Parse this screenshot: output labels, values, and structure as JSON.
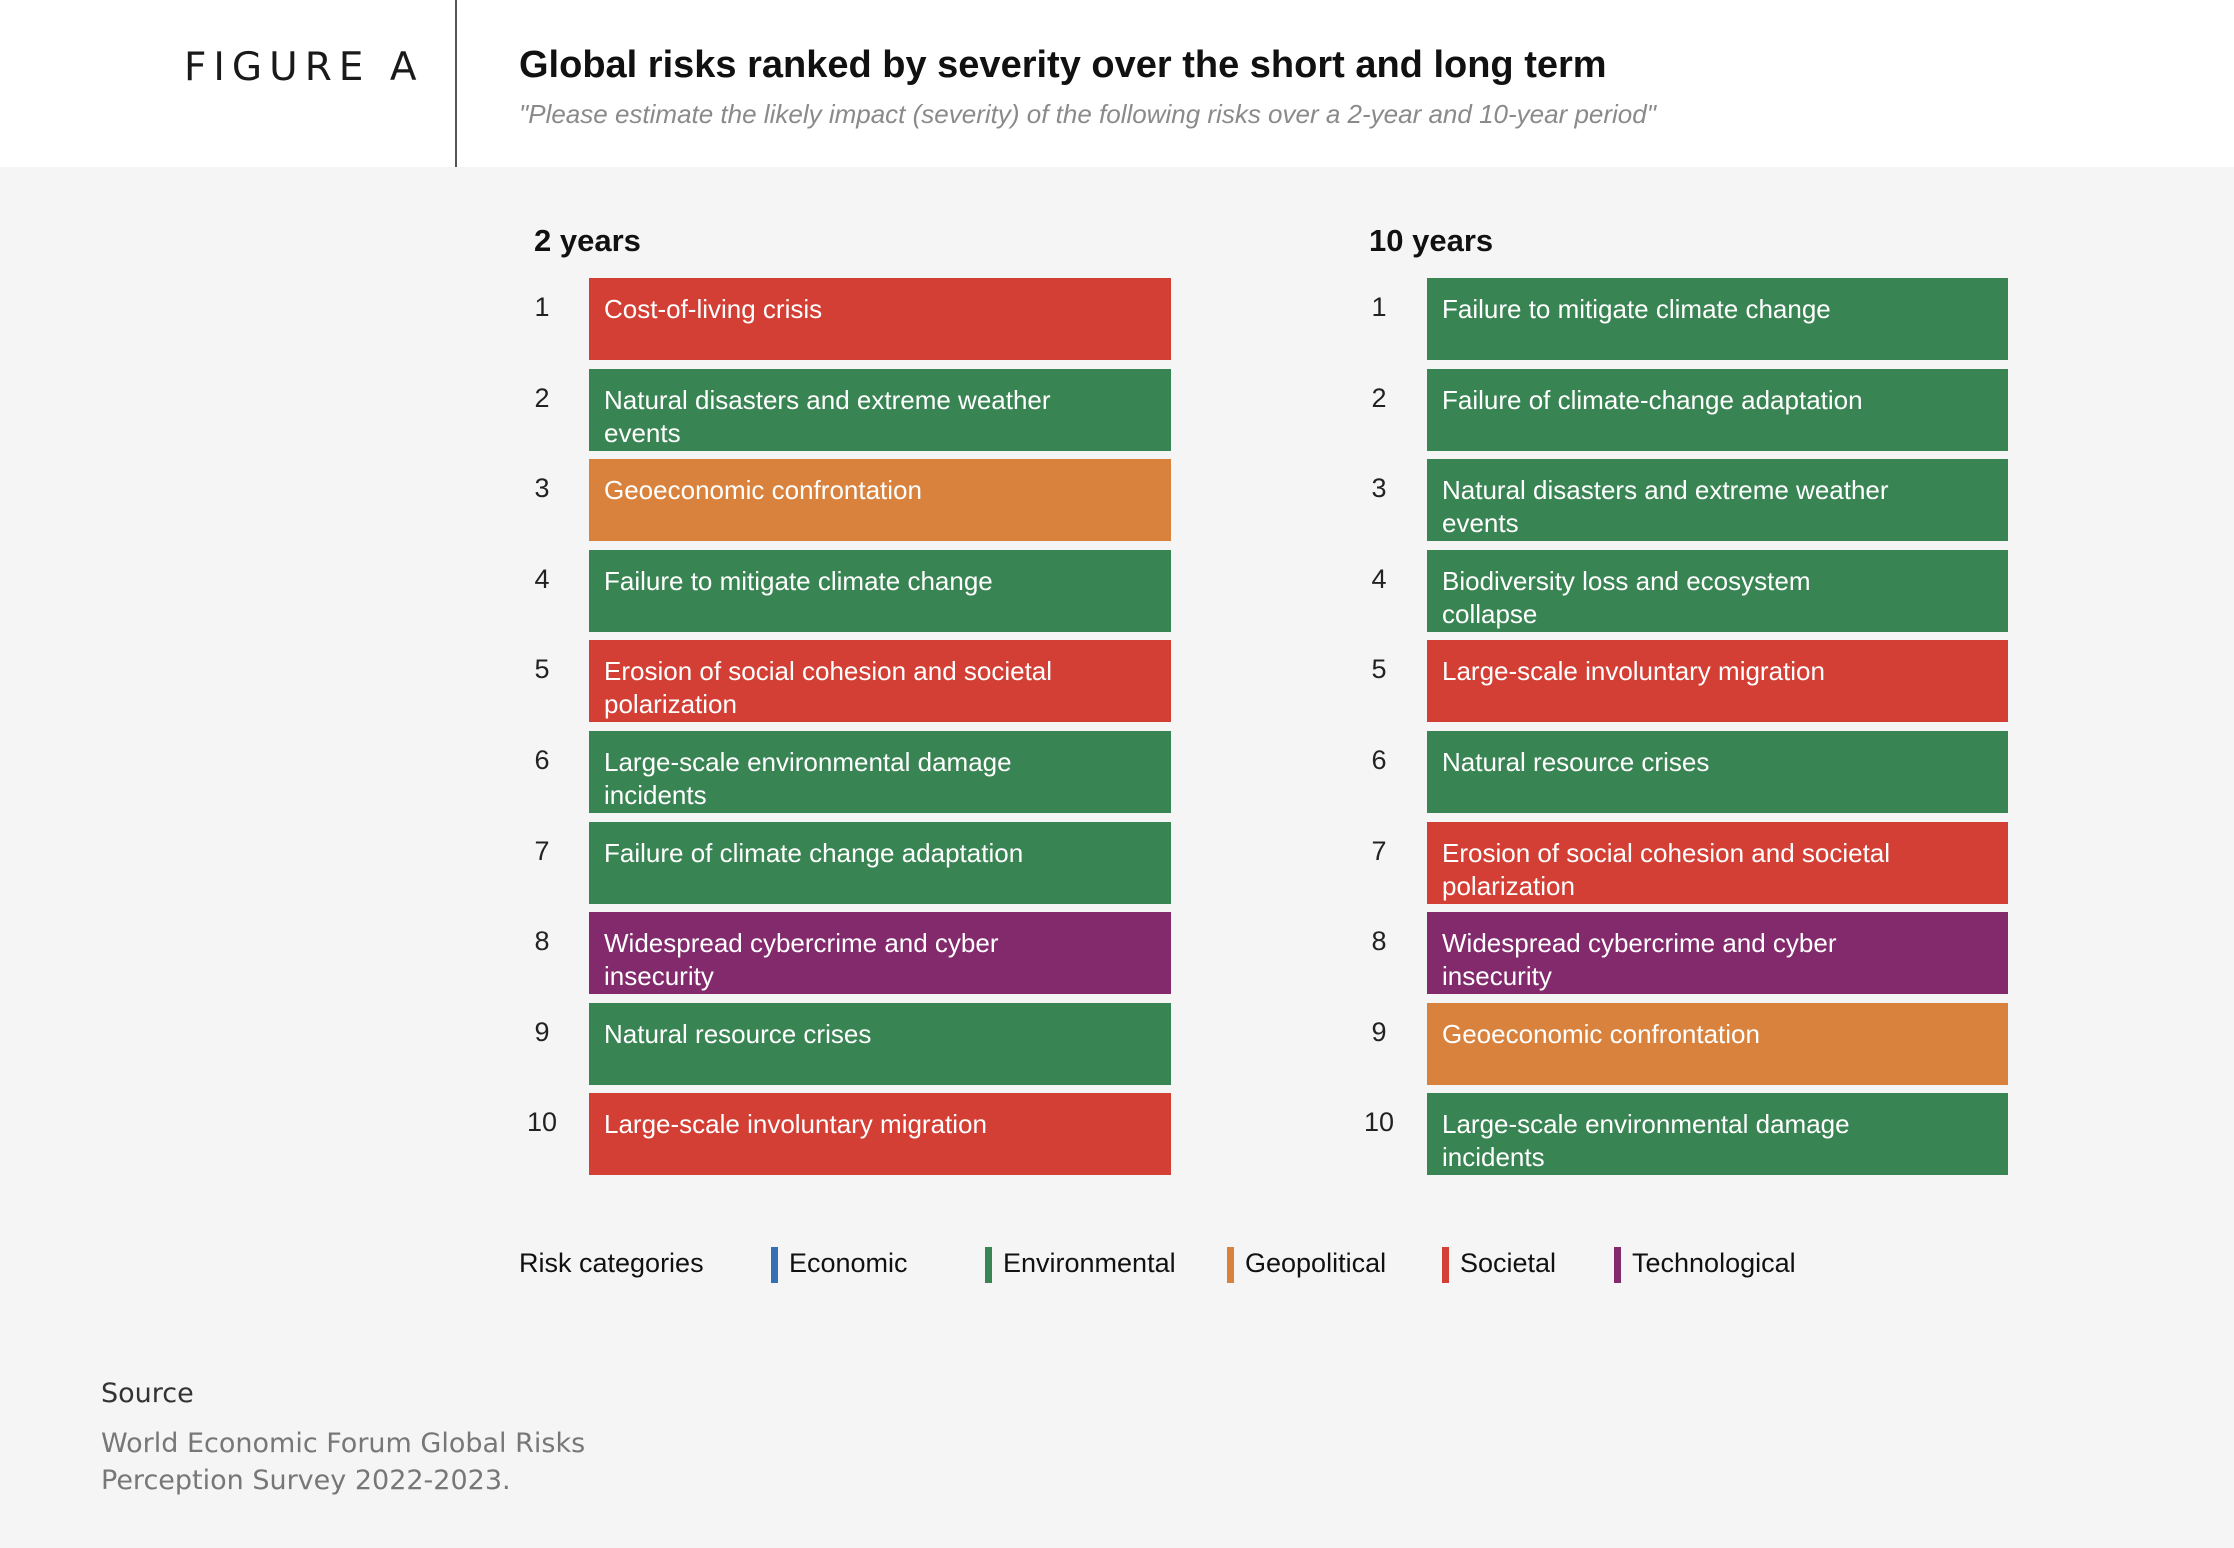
{
  "header": {
    "figure_label": "FIGURE A",
    "title": "Global risks ranked by severity over the short and long term",
    "subtitle": "\"Please estimate the likely impact (severity) of the following risks over a 2-year and 10-year period\""
  },
  "colors": {
    "Economic": "#3470b4",
    "Environmental": "#398453",
    "Geopolitical": "#d8823d",
    "Societal": "#d33f35",
    "Technological": "#832a6d"
  },
  "chart_data": {
    "type": "table",
    "columns": [
      {
        "title": "2 years",
        "rows": [
          {
            "rank": "1",
            "risk": "Cost-of-living crisis",
            "category": "Societal"
          },
          {
            "rank": "2",
            "risk": "Natural disasters and extreme weather events",
            "category": "Environmental"
          },
          {
            "rank": "3",
            "risk": "Geoeconomic confrontation",
            "category": "Geopolitical"
          },
          {
            "rank": "4",
            "risk": "Failure to mitigate climate change",
            "category": "Environmental"
          },
          {
            "rank": "5",
            "risk": "Erosion of social cohesion and societal polarization",
            "category": "Societal"
          },
          {
            "rank": "6",
            "risk": "Large-scale environmental damage incidents",
            "category": "Environmental"
          },
          {
            "rank": "7",
            "risk": "Failure of climate change adaptation",
            "category": "Environmental"
          },
          {
            "rank": "8",
            "risk": "Widespread cybercrime and cyber insecurity",
            "category": "Technological"
          },
          {
            "rank": "9",
            "risk": "Natural resource crises",
            "category": "Environmental"
          },
          {
            "rank": "10",
            "risk": "Large-scale involuntary migration",
            "category": "Societal"
          }
        ]
      },
      {
        "title": "10 years",
        "rows": [
          {
            "rank": "1",
            "risk": "Failure to mitigate climate change",
            "category": "Environmental"
          },
          {
            "rank": "2",
            "risk": "Failure of climate-change adaptation",
            "category": "Environmental"
          },
          {
            "rank": "3",
            "risk": "Natural disasters and extreme weather events",
            "category": "Environmental"
          },
          {
            "rank": "4",
            "risk": "Biodiversity loss and ecosystem collapse",
            "category": "Environmental"
          },
          {
            "rank": "5",
            "risk": "Large-scale involuntary migration",
            "category": "Societal"
          },
          {
            "rank": "6",
            "risk": "Natural resource crises",
            "category": "Environmental"
          },
          {
            "rank": "7",
            "risk": "Erosion of social cohesion and societal polarization",
            "category": "Societal"
          },
          {
            "rank": "8",
            "risk": "Widespread cybercrime and cyber insecurity",
            "category": "Technological"
          },
          {
            "rank": "9",
            "risk": "Geoeconomic confrontation",
            "category": "Geopolitical"
          },
          {
            "rank": "10",
            "risk": "Large-scale environmental damage incidents",
            "category": "Environmental"
          }
        ]
      }
    ],
    "legend": {
      "title": "Risk categories",
      "items": [
        "Economic",
        "Environmental",
        "Geopolitical",
        "Societal",
        "Technological"
      ]
    }
  },
  "source": {
    "title": "Source",
    "text": "World Economic Forum Global Risks Perception Survey 2022-2023."
  }
}
